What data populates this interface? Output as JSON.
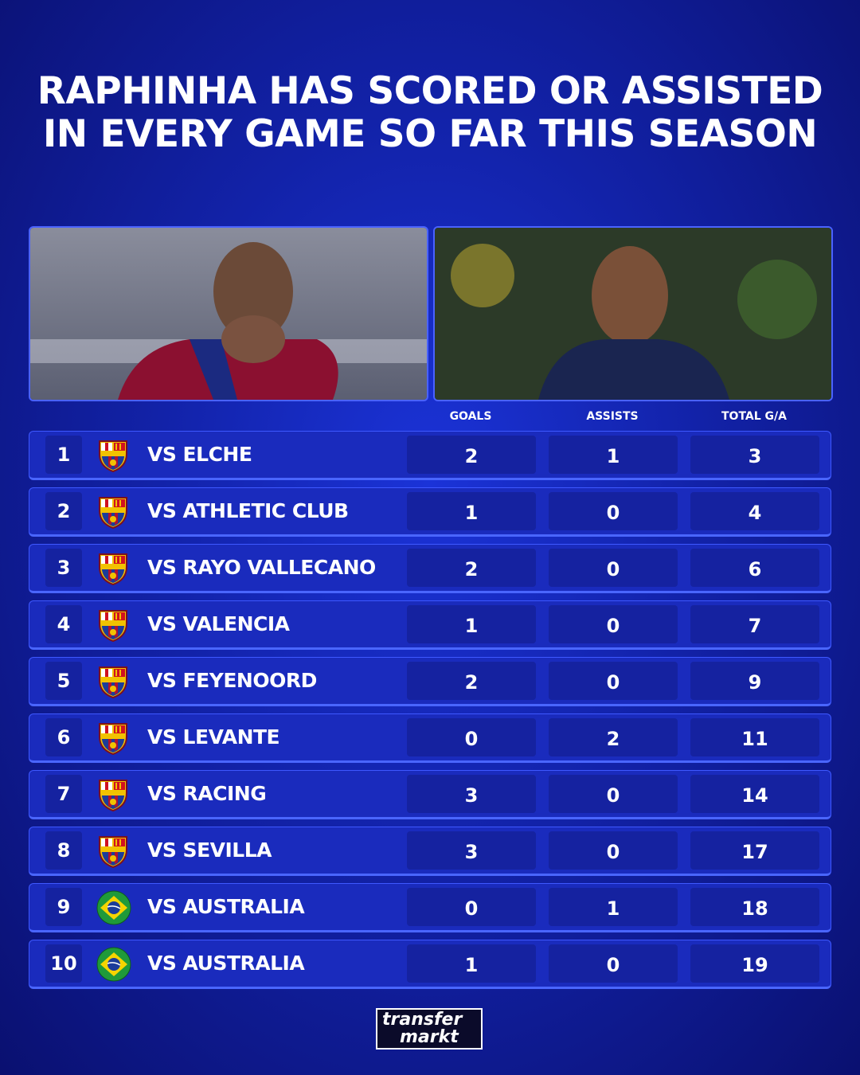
{
  "title": {
    "lines": [
      "RAPHINHA HAS SCORED OR ASSISTED",
      "IN EVERY GAME SO FAR THIS SEASON"
    ]
  },
  "table": {
    "headers": [
      "GOALS",
      "ASSISTS",
      "TOTAL G/A"
    ],
    "rows": [
      {
        "number": "1",
        "crest": "barcelona",
        "opponent": "VS ELCHE",
        "cells": [
          "2",
          "1",
          "3"
        ]
      },
      {
        "number": "2",
        "crest": "barcelona",
        "opponent": "VS ATHLETIC CLUB",
        "cells": [
          "1",
          "0",
          "4"
        ]
      },
      {
        "number": "3",
        "crest": "barcelona",
        "opponent": "VS RAYO VALLECANO",
        "cells": [
          "2",
          "0",
          "6"
        ]
      },
      {
        "number": "4",
        "crest": "barcelona",
        "opponent": "VS VALENCIA",
        "cells": [
          "1",
          "0",
          "7"
        ]
      },
      {
        "number": "5",
        "crest": "barcelona",
        "opponent": "VS FEYENOORD",
        "cells": [
          "2",
          "0",
          "9"
        ]
      },
      {
        "number": "6",
        "crest": "barcelona",
        "opponent": "VS LEVANTE",
        "cells": [
          "0",
          "2",
          "11"
        ]
      },
      {
        "number": "7",
        "crest": "barcelona",
        "opponent": "VS RACING",
        "cells": [
          "3",
          "0",
          "14"
        ]
      },
      {
        "number": "8",
        "crest": "barcelona",
        "opponent": "VS SEVILLA",
        "cells": [
          "3",
          "0",
          "17"
        ]
      },
      {
        "number": "9",
        "crest": "brazil",
        "opponent": "VS AUSTRALIA",
        "cells": [
          "0",
          "1",
          "18"
        ]
      },
      {
        "number": "10",
        "crest": "brazil",
        "opponent": "VS AUSTRALIA",
        "cells": [
          "1",
          "0",
          "19"
        ]
      }
    ]
  },
  "logo": {
    "lines": [
      "transfer",
      "markt"
    ]
  }
}
